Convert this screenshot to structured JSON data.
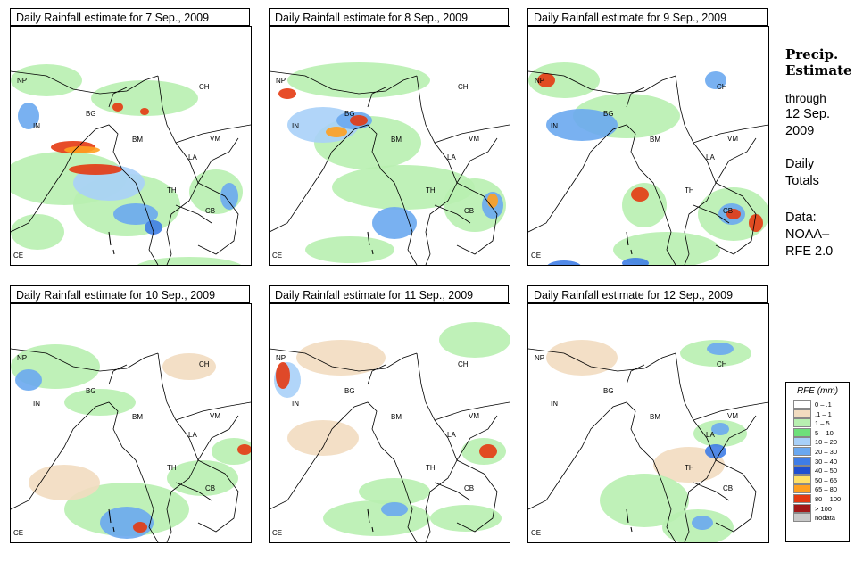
{
  "panels": [
    {
      "title": "Daily Rainfall estimate for  7 Sep., 2009"
    },
    {
      "title": "Daily Rainfall estimate for  8 Sep., 2009"
    },
    {
      "title": "Daily Rainfall estimate for  9 Sep., 2009"
    },
    {
      "title": "Daily Rainfall estimate for  10 Sep., 2009"
    },
    {
      "title": "Daily Rainfall estimate for  11 Sep., 2009"
    },
    {
      "title": "Daily Rainfall estimate for  12 Sep., 2009"
    }
  ],
  "country_labels": {
    "NP": "NP",
    "IN": "IN",
    "BG": "BG",
    "BM": "BM",
    "CH": "CH",
    "VM": "VM",
    "LA": "LA",
    "TH": "TH",
    "CB": "CB",
    "CE": "CE"
  },
  "side": {
    "title1": "Precip.",
    "title2": "Estimate",
    "through": "through",
    "date1": "12 Sep.",
    "date2": "2009",
    "daily1": "Daily",
    "daily2": "Totals",
    "data1": "Data:",
    "data2": "NOAA–",
    "data3": "RFE 2.0"
  },
  "legend": {
    "title": "RFE (mm)",
    "items": [
      {
        "label": "0 – .1",
        "color": "#ffffff"
      },
      {
        "label": ".1 – 1",
        "color": "#f2dcc0"
      },
      {
        "label": "1 – 5",
        "color": "#b8f0b0"
      },
      {
        "label": "5 – 10",
        "color": "#6ee07a"
      },
      {
        "label": "10 – 20",
        "color": "#a8d0f8"
      },
      {
        "label": "20 – 30",
        "color": "#6aa8f0"
      },
      {
        "label": "30 – 40",
        "color": "#3f7de6"
      },
      {
        "label": "40 – 50",
        "color": "#1f4fd0"
      },
      {
        "label": "50 – 65",
        "color": "#ffe066"
      },
      {
        "label": "65 – 80",
        "color": "#ffa020"
      },
      {
        "label": "80 – 100",
        "color": "#e43a12"
      },
      {
        "label": "> 100",
        "color": "#a21818"
      },
      {
        "label": "nodata",
        "color": "#c8c8c8"
      }
    ]
  }
}
